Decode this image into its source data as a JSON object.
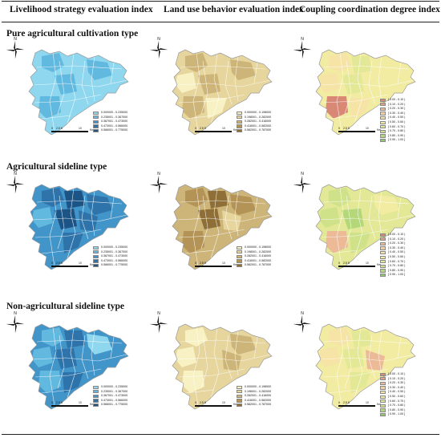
{
  "columns": [
    "Livelihood strategy evaluation index",
    "Land use behavior evaluation index",
    "Coupling coordination degree index"
  ],
  "rows": [
    "Pure agricultural cultivation type",
    "Agricultural sideline type",
    "Non-agricultural sideline type"
  ],
  "compass_label": "N",
  "scale": {
    "ticks": [
      "0",
      "2.5",
      "5",
      "10"
    ],
    "unit": "Km"
  },
  "legends": {
    "livelihood": {
      "items": [
        "0.000000 - 0.235000",
        "0.235001 - 0.367000",
        "0.367001 - 0.473000",
        "0.473001 - 0.566000",
        "0.566001 - 0.775000"
      ],
      "colors": [
        "#8fd7ee",
        "#61b9e0",
        "#4295c9",
        "#2e74ab",
        "#1d5486"
      ]
    },
    "landuse": {
      "items": [
        "0.000000 - 0.198000",
        "0.198001 - 0.282000",
        "0.282001 - 0.416000",
        "0.416001 - 0.582000",
        "0.582001 - 0.787000"
      ],
      "colors": [
        "#f7f1c3",
        "#e6d59c",
        "#cdb478",
        "#b39356",
        "#8e6f37"
      ]
    },
    "coupling": {
      "items": [
        "[ 0.00 - 0.10 )",
        "[ 0.10 - 0.20 )",
        "[ 0.20 - 0.30 )",
        "[ 0.30 - 0.40 )",
        "[ 0.40 - 0.50 )",
        "[ 0.50 - 0.60 )",
        "[ 0.60 - 0.70 )",
        "[ 0.70 - 0.80 )",
        "[ 0.80 - 0.90 )",
        "[ 0.90 - 1.00 ]"
      ],
      "colors": [
        "#d98876",
        "#e4a086",
        "#ecba97",
        "#f2cf9f",
        "#f6e3a6",
        "#f2eba2",
        "#e3e896",
        "#cfe28a",
        "#b4d77a",
        "#94c868"
      ]
    }
  },
  "maps": {
    "livelihood": [
      {
        "base": "#8fd7ee",
        "patches": [
          "#61b9e0",
          "#8fd7ee",
          "#61b9e0",
          "#8fd7ee",
          "#61b9e0",
          "#8fd7ee",
          "#61b9e0",
          "#8fd7ee"
        ]
      },
      {
        "base": "#4295c9",
        "patches": [
          "#2e74ab",
          "#1d5486",
          "#2e74ab",
          "#61b9e0",
          "#1d5486",
          "#2e74ab",
          "#4295c9",
          "#2e74ab"
        ]
      },
      {
        "base": "#4295c9",
        "patches": [
          "#61b9e0",
          "#2e74ab",
          "#8fd7ee",
          "#61b9e0",
          "#2e74ab",
          "#4295c9",
          "#61b9e0",
          "#2e74ab"
        ]
      }
    ],
    "landuse": [
      {
        "base": "#e6d59c",
        "patches": [
          "#cdb478",
          "#e6d59c",
          "#cdb478",
          "#f7f1c3",
          "#cdb478",
          "#e6d59c",
          "#cdb478",
          "#f7f1c3"
        ]
      },
      {
        "base": "#cdb478",
        "patches": [
          "#b39356",
          "#8e6f37",
          "#b39356",
          "#cdb478",
          "#8e6f37",
          "#e6d59c",
          "#b39356",
          "#cdb478"
        ]
      },
      {
        "base": "#e6d59c",
        "patches": [
          "#f7f1c3",
          "#e6d59c",
          "#cdb478",
          "#f7f1c3",
          "#e6d59c",
          "#cdb478",
          "#f7f1c3",
          "#e6d59c"
        ]
      }
    ],
    "coupling": [
      {
        "base": "#f2eba2",
        "patches": [
          "#f6e3a6",
          "#e3e896",
          "#f2eba2",
          "#f6e3a6",
          "#e3e896",
          "#f2eba2",
          "#d98876",
          "#f6e3a6"
        ]
      },
      {
        "base": "#e3e896",
        "patches": [
          "#cfe28a",
          "#e3e896",
          "#f2eba2",
          "#cfe28a",
          "#b4d77a",
          "#e3e896",
          "#ecba97",
          "#cfe28a"
        ]
      },
      {
        "base": "#f2eba2",
        "patches": [
          "#f6e3a6",
          "#e3e896",
          "#f2eba2",
          "#f6e3a6",
          "#e3e896",
          "#ecba97",
          "#f2eba2",
          "#e3e896"
        ]
      }
    ]
  }
}
